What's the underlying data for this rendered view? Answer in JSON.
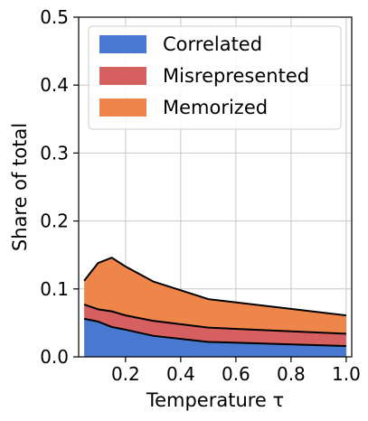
{
  "chart_data": {
    "type": "area",
    "stacked": true,
    "xlabel": "Temperature τ",
    "ylabel": "Share of total",
    "xlim": [
      0.03,
      1.02
    ],
    "ylim": [
      0.0,
      0.5
    ],
    "xticks": [
      0.2,
      0.4,
      0.6,
      0.8,
      1.0
    ],
    "xtick_labels": [
      "0.2",
      "0.4",
      "0.6",
      "0.8",
      "1.0"
    ],
    "yticks": [
      0.0,
      0.1,
      0.2,
      0.3,
      0.4,
      0.5
    ],
    "ytick_labels": [
      "0.0",
      "0.1",
      "0.2",
      "0.3",
      "0.4",
      "0.5"
    ],
    "grid": true,
    "legend_position": "top",
    "x": [
      0.05,
      0.1,
      0.15,
      0.2,
      0.3,
      0.5,
      1.0
    ],
    "series": [
      {
        "name": "Correlated",
        "color": "#4878d0",
        "values": [
          0.056,
          0.052,
          0.044,
          0.04,
          0.031,
          0.022,
          0.016
        ]
      },
      {
        "name": "Misrepresented",
        "color": "#d65f5f",
        "values": [
          0.021,
          0.018,
          0.023,
          0.021,
          0.022,
          0.021,
          0.018
        ]
      },
      {
        "name": "Memorized",
        "color": "#ee854a",
        "values": [
          0.035,
          0.068,
          0.079,
          0.072,
          0.058,
          0.042,
          0.027
        ]
      }
    ]
  }
}
